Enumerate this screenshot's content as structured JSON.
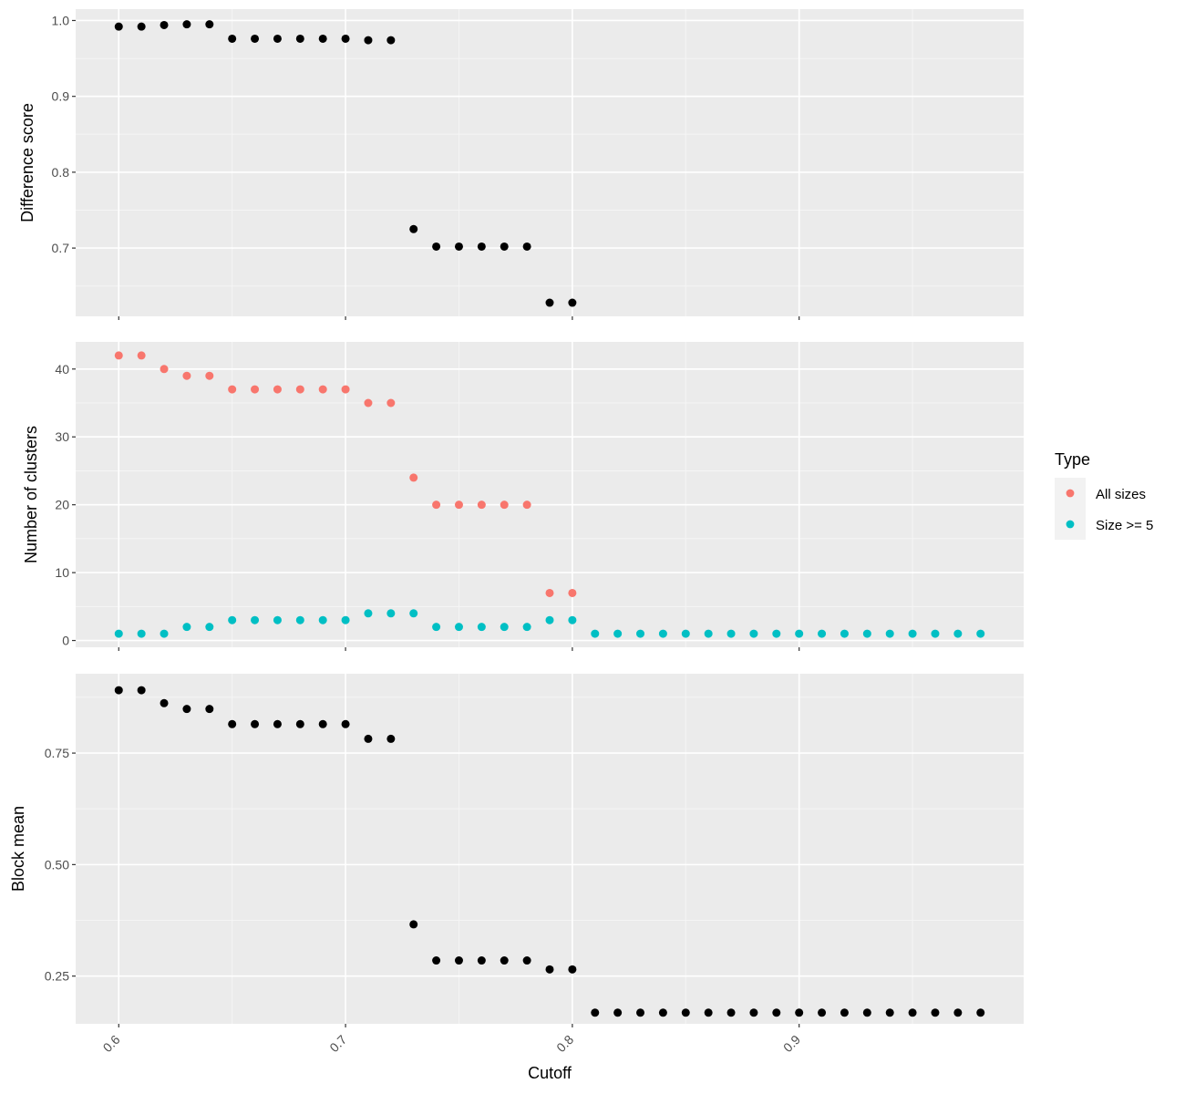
{
  "chart_data": [
    {
      "type": "scatter",
      "panel": "top",
      "ylabel": "Difference score",
      "ylim": [
        0.61,
        1.015
      ],
      "yticks": [
        0.7,
        0.8,
        0.9,
        1.0
      ],
      "ytick_labels": [
        "0.7",
        "0.8",
        "0.9",
        "1.0"
      ],
      "series": [
        {
          "color": "#000000",
          "x": [
            0.6,
            0.61,
            0.62,
            0.63,
            0.64,
            0.65,
            0.66,
            0.67,
            0.68,
            0.69,
            0.7,
            0.71,
            0.72,
            0.73,
            0.74,
            0.75,
            0.76,
            0.77,
            0.78,
            0.79,
            0.8
          ],
          "y": [
            0.992,
            0.992,
            0.994,
            0.995,
            0.995,
            0.976,
            0.976,
            0.976,
            0.976,
            0.976,
            0.976,
            0.974,
            0.974,
            0.725,
            0.702,
            0.702,
            0.702,
            0.702,
            0.702,
            0.628,
            0.628
          ]
        }
      ],
      "grid": true
    },
    {
      "type": "scatter",
      "panel": "middle",
      "ylabel": "Number of clusters",
      "ylim": [
        -1,
        44
      ],
      "yticks": [
        0,
        10,
        20,
        30,
        40
      ],
      "ytick_labels": [
        "0",
        "10",
        "20",
        "30",
        "40"
      ],
      "series": [
        {
          "name": "All sizes",
          "color": "#F8766D",
          "x": [
            0.6,
            0.61,
            0.62,
            0.63,
            0.64,
            0.65,
            0.66,
            0.67,
            0.68,
            0.69,
            0.7,
            0.71,
            0.72,
            0.73,
            0.74,
            0.75,
            0.76,
            0.77,
            0.78,
            0.79,
            0.8
          ],
          "y": [
            42,
            42,
            40,
            39,
            39,
            37,
            37,
            37,
            37,
            37,
            37,
            35,
            35,
            24,
            20,
            20,
            20,
            20,
            20,
            7,
            7
          ]
        },
        {
          "name": "Size >= 5",
          "color": "#00BFC4",
          "x": [
            0.6,
            0.61,
            0.62,
            0.63,
            0.64,
            0.65,
            0.66,
            0.67,
            0.68,
            0.69,
            0.7,
            0.71,
            0.72,
            0.73,
            0.74,
            0.75,
            0.76,
            0.77,
            0.78,
            0.79,
            0.8,
            0.81,
            0.82,
            0.83,
            0.84,
            0.85,
            0.86,
            0.87,
            0.88,
            0.89,
            0.9,
            0.91,
            0.92,
            0.93,
            0.94,
            0.95,
            0.96,
            0.97,
            0.98
          ],
          "y": [
            1,
            1,
            1,
            2,
            2,
            3,
            3,
            3,
            3,
            3,
            3,
            4,
            4,
            4,
            2,
            2,
            2,
            2,
            2,
            3,
            3,
            1,
            1,
            1,
            1,
            1,
            1,
            1,
            1,
            1,
            1,
            1,
            1,
            1,
            1,
            1,
            1,
            1,
            1
          ]
        }
      ],
      "grid": true
    },
    {
      "type": "scatter",
      "panel": "bottom",
      "ylabel": "Block mean",
      "xlabel": "Cutoff",
      "ylim": [
        0.143,
        0.928
      ],
      "yticks": [
        0.25,
        0.5,
        0.75
      ],
      "ytick_labels": [
        "0.25",
        "0.50",
        "0.75"
      ],
      "series": [
        {
          "color": "#000000",
          "x": [
            0.6,
            0.61,
            0.62,
            0.63,
            0.64,
            0.65,
            0.66,
            0.67,
            0.68,
            0.69,
            0.7,
            0.71,
            0.72,
            0.73,
            0.74,
            0.75,
            0.76,
            0.77,
            0.78,
            0.79,
            0.8,
            0.81,
            0.82,
            0.83,
            0.84,
            0.85,
            0.86,
            0.87,
            0.88,
            0.89,
            0.9,
            0.91,
            0.92,
            0.93,
            0.94,
            0.95,
            0.96,
            0.97,
            0.98
          ],
          "y": [
            0.891,
            0.891,
            0.862,
            0.849,
            0.849,
            0.815,
            0.815,
            0.815,
            0.815,
            0.815,
            0.815,
            0.782,
            0.782,
            0.366,
            0.285,
            0.285,
            0.285,
            0.285,
            0.285,
            0.265,
            0.265,
            0.168,
            0.168,
            0.168,
            0.168,
            0.168,
            0.168,
            0.168,
            0.168,
            0.168,
            0.168,
            0.168,
            0.168,
            0.168,
            0.168,
            0.168,
            0.168,
            0.168,
            0.168
          ]
        }
      ],
      "grid": true
    }
  ],
  "shared_x": {
    "xlim": [
      0.581,
      0.999
    ],
    "xticks": [
      0.6,
      0.7,
      0.8,
      0.9
    ],
    "xtick_labels": [
      "0.6",
      "0.7",
      "0.8",
      "0.9"
    ]
  },
  "legend": {
    "title": "Type",
    "placement": "right",
    "items": [
      {
        "label": "All sizes",
        "color": "#F8766D"
      },
      {
        "label": "Size >= 5",
        "color": "#00BFC4"
      }
    ]
  },
  "style": {
    "panel_background": "#EBEBEB",
    "grid_major": "#FFFFFF",
    "grid_minor": "#F5F5F5",
    "axis_tick": "#333333"
  }
}
